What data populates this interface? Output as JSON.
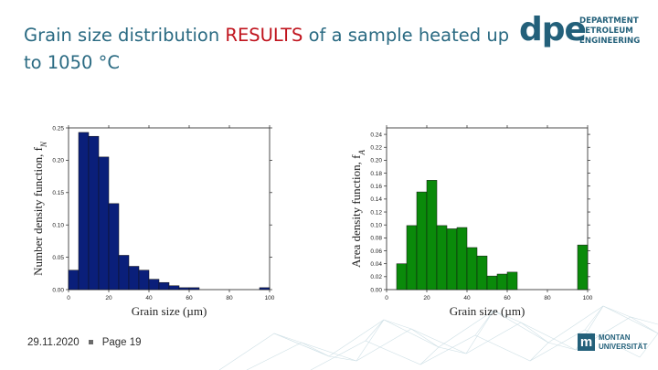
{
  "slide": {
    "title_part1": "Grain size distribution ",
    "title_highlight": "RESULTS",
    "title_part2": " of a sample heated up to 1050 °C",
    "date": "29.11.2020",
    "page": "Page 19"
  },
  "logo": {
    "mark": "dpe",
    "line1": "DEPARTMENT",
    "line2": "PETROLEUM",
    "line3": "ENGINEERING"
  },
  "university": {
    "line1": "MONTAN",
    "line2": "UNIVERSITÄT"
  },
  "colors": {
    "title": "#2a6a82",
    "highlight": "#c0141e",
    "left_bars": "#0a1f7a",
    "right_bars": "#0a8a0a"
  },
  "chart_data": [
    {
      "type": "bar",
      "bin_edges": [
        0,
        5,
        10,
        15,
        20,
        25,
        30,
        35,
        40,
        45,
        50,
        55,
        60,
        65,
        70,
        75,
        80,
        85,
        90,
        95,
        100
      ],
      "values": [
        0.03,
        0.243,
        0.237,
        0.205,
        0.133,
        0.053,
        0.036,
        0.03,
        0.016,
        0.011,
        0.006,
        0.003,
        0.003,
        0,
        0,
        0,
        0,
        0,
        0,
        0.003
      ],
      "xlabel": "Grain size (µm)",
      "ylabel": "Number density function, f",
      "ylabel_sub": "N",
      "xlim": [
        0,
        100
      ],
      "ylim": [
        0,
        0.25
      ],
      "xticks": [
        "0",
        "20",
        "40",
        "60",
        "80",
        "100"
      ],
      "yticks": [
        "0.00",
        "0.05",
        "0.10",
        "0.15",
        "0.20",
        "0.25"
      ]
    },
    {
      "type": "bar",
      "bin_edges": [
        0,
        5,
        10,
        15,
        20,
        25,
        30,
        35,
        40,
        45,
        50,
        55,
        60,
        65,
        70,
        75,
        80,
        85,
        90,
        95,
        100
      ],
      "values": [
        0,
        0.04,
        0.099,
        0.151,
        0.169,
        0.099,
        0.094,
        0.096,
        0.065,
        0.052,
        0.021,
        0.024,
        0.027,
        0,
        0,
        0,
        0,
        0,
        0,
        0.069
      ],
      "xlabel": "Grain size (µm)",
      "ylabel": "Area density function, f",
      "ylabel_sub": "A",
      "xlim": [
        0,
        100
      ],
      "ylim": [
        0,
        0.25
      ],
      "xticks": [
        "0",
        "20",
        "40",
        "60",
        "80",
        "100"
      ],
      "yticks": [
        "0.00",
        "0.02",
        "0.04",
        "0.06",
        "0.08",
        "0.10",
        "0.12",
        "0.14",
        "0.16",
        "0.18",
        "0.20",
        "0.22",
        "0.24"
      ]
    }
  ]
}
